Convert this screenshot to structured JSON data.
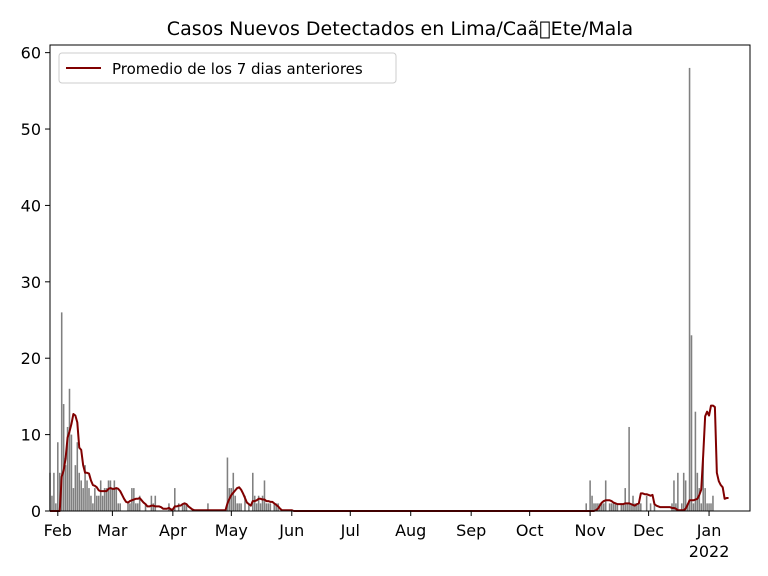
{
  "chart_data": {
    "type": "bar",
    "title": "Casos Nuevos Detectados en Lima/Caã\u0000Ete/Mala",
    "xlabel": "",
    "ylabel": "",
    "ylim": [
      0,
      61
    ],
    "yticks": [
      0,
      10,
      20,
      30,
      40,
      50,
      60
    ],
    "xticks": [
      {
        "label": "Feb",
        "date": "2021-02-01"
      },
      {
        "label": "Mar",
        "date": "2021-03-01"
      },
      {
        "label": "Apr",
        "date": "2021-04-01"
      },
      {
        "label": "May",
        "date": "2021-05-01"
      },
      {
        "label": "Jun",
        "date": "2021-06-01"
      },
      {
        "label": "Jul",
        "date": "2021-07-01"
      },
      {
        "label": "Aug",
        "date": "2021-08-01"
      },
      {
        "label": "Sep",
        "date": "2021-09-01"
      },
      {
        "label": "Oct",
        "date": "2021-10-01"
      },
      {
        "label": "Nov",
        "date": "2021-11-01"
      },
      {
        "label": "Dec",
        "date": "2021-12-01"
      },
      {
        "label": "Jan",
        "date": "2022-01-01"
      }
    ],
    "year_label": "2022",
    "x_start": "2021-01-28",
    "x_end": "2022-01-22",
    "grid": false,
    "legend": {
      "position": "top-left"
    },
    "colors": {
      "bars": "#808080",
      "line": "#800000"
    },
    "series": [
      {
        "type": "bar",
        "start_date": "2021-01-28",
        "values": [
          5,
          2,
          5,
          1,
          9,
          5,
          26,
          14,
          6,
          11,
          16,
          10,
          3,
          6,
          9,
          5,
          4,
          3,
          6,
          4,
          3,
          2,
          1,
          3,
          2,
          2,
          4,
          2,
          3,
          3,
          4,
          4,
          3,
          4,
          3,
          1,
          1,
          0,
          0,
          0,
          1,
          1,
          3,
          3,
          1,
          1,
          2,
          0,
          0,
          1,
          0,
          0,
          2,
          1,
          2,
          0,
          0,
          0,
          0,
          0,
          0,
          1,
          0,
          0,
          3,
          0,
          1,
          0,
          1,
          1,
          1,
          0,
          0,
          0,
          0,
          0,
          0,
          0,
          0,
          0,
          0,
          1,
          0,
          0,
          0,
          0,
          0,
          0,
          0,
          0,
          0,
          7,
          3,
          3,
          5,
          2,
          1,
          1,
          1,
          0,
          2,
          0,
          1,
          0,
          5,
          2,
          1,
          2,
          1,
          2,
          4,
          1,
          1,
          1,
          0,
          1,
          1,
          1,
          0,
          0,
          0,
          0,
          0,
          0,
          0,
          0,
          0,
          0,
          0,
          0,
          0,
          0,
          0,
          0,
          0,
          0,
          0,
          0,
          0,
          0,
          0,
          0,
          0,
          0,
          0,
          0,
          0,
          0,
          0,
          0,
          0,
          0,
          0,
          0,
          0,
          0,
          0,
          0,
          0,
          0,
          0,
          0,
          0,
          0,
          0,
          0,
          0,
          0,
          0,
          0,
          0,
          0,
          0,
          0,
          0,
          0,
          0,
          0,
          0,
          0,
          0,
          0,
          0,
          0,
          0,
          0,
          0,
          0,
          0,
          0,
          0,
          0,
          0,
          0,
          0,
          0,
          0,
          0,
          0,
          0,
          0,
          0,
          0,
          0,
          0,
          0,
          0,
          0,
          0,
          0,
          0,
          0,
          0,
          0,
          0,
          0,
          0,
          0,
          0,
          0,
          0,
          0,
          0,
          0,
          0,
          0,
          0,
          0,
          0,
          0,
          0,
          0,
          0,
          0,
          0,
          0,
          0,
          0,
          0,
          0,
          0,
          0,
          0,
          0,
          0,
          0,
          0,
          0,
          0,
          0,
          0,
          0,
          0,
          0,
          0,
          0,
          0,
          0,
          0,
          0,
          0,
          0,
          0,
          0,
          0,
          0,
          0,
          0,
          0,
          0,
          0,
          0,
          0,
          0,
          0,
          1,
          0,
          4,
          2,
          1,
          1,
          1,
          1,
          1,
          1,
          4,
          0,
          1,
          1,
          1,
          1,
          1,
          0,
          1,
          1,
          3,
          1,
          11,
          1,
          2,
          1,
          1,
          1,
          1,
          0,
          0,
          2,
          0,
          1,
          0,
          1,
          0,
          0,
          0,
          0,
          0,
          0,
          0,
          0,
          1,
          4,
          1,
          5,
          0,
          1,
          5,
          4,
          1,
          58,
          23,
          1,
          13,
          5,
          3,
          1,
          7,
          3,
          1,
          1,
          1,
          2
        ]
      },
      {
        "type": "line",
        "name": "Promedio de los 7 dias anteriores",
        "start_date": "2021-01-28",
        "values": [
          0,
          0,
          0,
          0,
          0,
          0,
          4.5,
          5.3,
          6.9,
          9.6,
          10.4,
          11.4,
          12.7,
          12.5,
          11.6,
          8.3,
          8.0,
          6.0,
          5.0,
          5.0,
          4.9,
          4.0,
          3.4,
          3.3,
          3.1,
          2.7,
          2.6,
          2.6,
          2.6,
          2.6,
          2.9,
          3.0,
          2.9,
          2.9,
          3.0,
          2.9,
          2.6,
          2.1,
          1.6,
          1.2,
          1.1,
          1.3,
          1.4,
          1.5,
          1.6,
          1.6,
          1.7,
          1.4,
          1.1,
          0.9,
          0.6,
          0.6,
          0.7,
          0.7,
          0.6,
          0.6,
          0.6,
          0.5,
          0.3,
          0.3,
          0.3,
          0.4,
          0.2,
          0.2,
          0.6,
          0.6,
          0.7,
          0.7,
          0.9,
          1.0,
          0.9,
          0.6,
          0.4,
          0.2,
          0.1,
          0.1,
          0.1,
          0.1,
          0.1,
          0.1,
          0.1,
          0.1,
          0.1,
          0.1,
          0.1,
          0.1,
          0.1,
          0.1,
          0.1,
          0.1,
          0.1,
          1.0,
          1.6,
          2.1,
          2.4,
          2.7,
          3.0,
          3.1,
          2.8,
          2.3,
          1.7,
          1.1,
          0.9,
          0.7,
          1.3,
          1.3,
          1.4,
          1.6,
          1.6,
          1.5,
          1.5,
          1.3,
          1.3,
          1.2,
          1.2,
          1.0,
          0.8,
          0.6,
          0.3,
          0.1,
          0.1,
          0.1,
          0.1,
          0.1,
          0.1,
          0,
          0,
          0,
          0,
          0,
          0,
          0,
          0,
          0,
          0,
          0,
          0,
          0,
          0,
          0,
          0,
          0,
          0,
          0,
          0,
          0,
          0,
          0,
          0,
          0,
          0,
          0,
          0,
          0,
          0,
          0,
          0,
          0,
          0,
          0,
          0,
          0,
          0,
          0,
          0,
          0,
          0,
          0,
          0,
          0,
          0,
          0,
          0,
          0,
          0,
          0,
          0,
          0,
          0,
          0,
          0,
          0,
          0,
          0,
          0,
          0,
          0,
          0,
          0,
          0,
          0,
          0,
          0,
          0,
          0,
          0,
          0,
          0,
          0,
          0,
          0,
          0,
          0,
          0,
          0,
          0,
          0,
          0,
          0,
          0,
          0,
          0,
          0,
          0,
          0,
          0,
          0,
          0,
          0,
          0,
          0,
          0,
          0,
          0,
          0,
          0,
          0,
          0,
          0,
          0,
          0,
          0,
          0,
          0,
          0,
          0,
          0,
          0,
          0,
          0,
          0,
          0,
          0,
          0,
          0,
          0,
          0,
          0,
          0,
          0,
          0,
          0,
          0,
          0,
          0,
          0,
          0,
          0,
          0,
          0,
          0,
          0,
          0,
          0,
          0,
          0,
          0,
          0,
          0,
          0,
          0,
          0,
          0,
          0,
          0,
          0,
          0,
          0,
          0,
          0,
          0.1,
          0.3,
          0.7,
          1.1,
          1.3,
          1.4,
          1.4,
          1.4,
          1.3,
          1.1,
          1.0,
          0.9,
          0.9,
          0.9,
          0.9,
          1.0,
          1.0,
          1.0,
          0.9,
          0.8,
          0.7,
          0.9,
          1.0,
          2.3,
          2.3,
          2.2,
          2.2,
          2.1,
          2.0,
          2.1,
          0.9,
          0.7,
          0.6,
          0.5,
          0.5,
          0.5,
          0.5,
          0.5,
          0.5,
          0.4,
          0.4,
          0.3,
          0.1,
          0.1,
          0.1,
          0.1,
          0.3,
          0.8,
          1.4,
          1.4,
          1.4,
          1.5,
          1.6,
          2.1,
          2.8,
          7.3,
          12.4,
          13.0,
          12.5,
          13.8,
          13.8,
          13.6,
          5.0,
          3.9,
          3.4,
          3.1,
          1.6,
          1.7,
          1.7
        ]
      }
    ]
  }
}
